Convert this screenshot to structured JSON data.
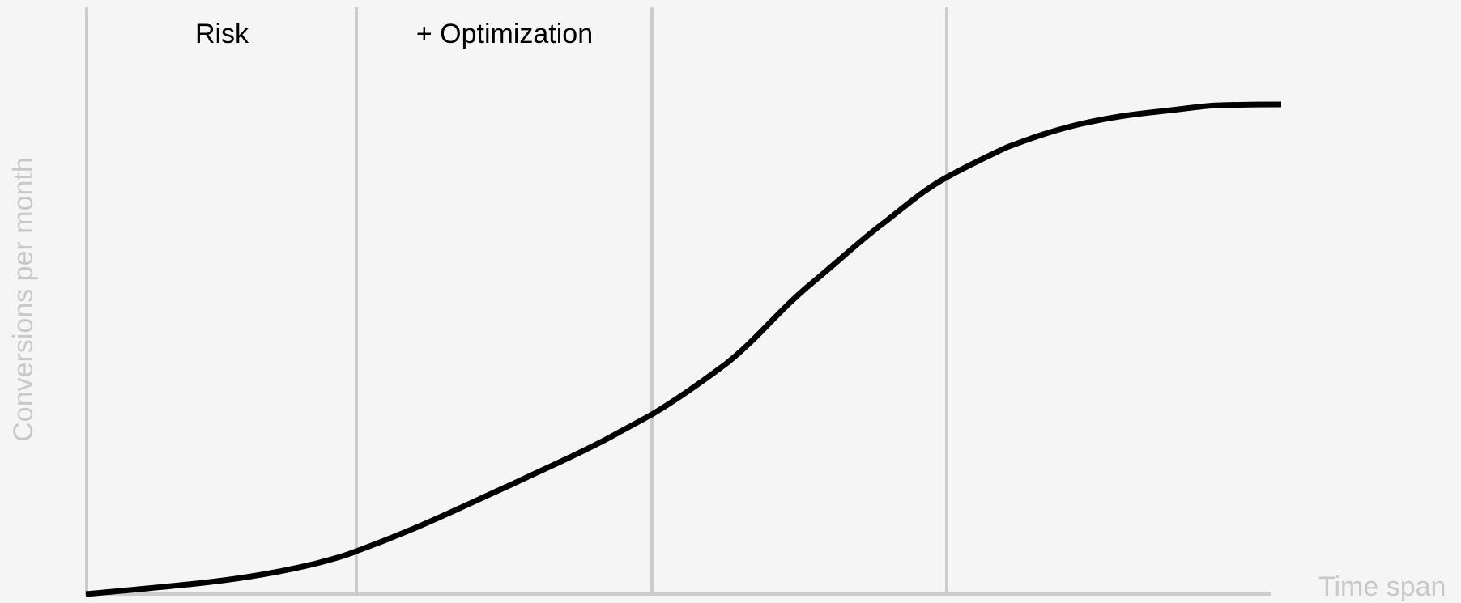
{
  "axes": {
    "y_label": "Conversions per month",
    "x_label": "Time span"
  },
  "phases": [
    "Risk",
    "+ Optimization"
  ]
}
